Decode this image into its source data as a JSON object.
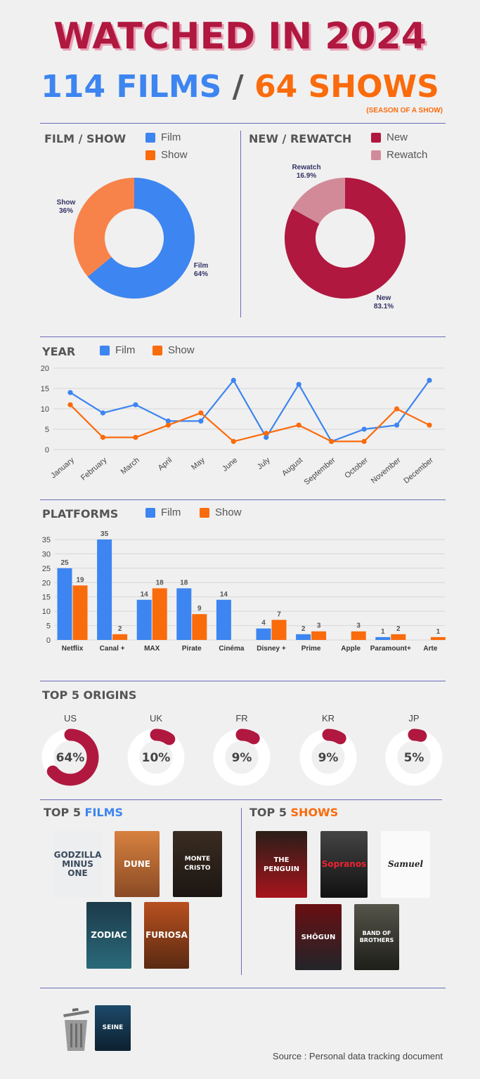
{
  "header": {
    "title": "WATCHED IN 2024",
    "films": "114 FILMS",
    "separator": "/",
    "shows": "64 SHOWS",
    "note": "(SEASON OF A SHOW)"
  },
  "colors": {
    "film": "#3d85f0",
    "show": "#fa6b0c",
    "show_light": "#f7834a",
    "new": "#b0183f",
    "rewatch": "#d28a99"
  },
  "donut_type": {
    "title": "FILM / SHOW",
    "legend": [
      "Film",
      "Show"
    ],
    "labels": {
      "film": "Film",
      "film_pct": "64%",
      "show": "Show",
      "show_pct": "36%"
    }
  },
  "donut_new": {
    "title": "NEW / REWATCH",
    "legend": [
      "New",
      "Rewatch"
    ],
    "labels": {
      "new": "New",
      "new_pct": "83.1%",
      "rewatch": "Rewatch",
      "rewatch_pct": "16.9%"
    }
  },
  "year": {
    "title": "YEAR",
    "legend": [
      "Film",
      "Show"
    ]
  },
  "platforms": {
    "title": "PLATFORMS",
    "legend": [
      "Film",
      "Show"
    ]
  },
  "origins": {
    "title": "TOP 5 ORIGINS",
    "items": [
      {
        "code": "US",
        "label": "64%",
        "value": 64
      },
      {
        "code": "UK",
        "label": "10%",
        "value": 10
      },
      {
        "code": "FR",
        "label": "9%",
        "value": 9
      },
      {
        "code": "KR",
        "label": "9%",
        "value": 9
      },
      {
        "code": "JP",
        "label": "5%",
        "value": 5
      }
    ]
  },
  "top_films": {
    "title_prefix": "TOP 5",
    "title_accent": "FILMS",
    "posters": [
      "GODZILLA MINUS ONE",
      "DUNE",
      "MONTE CRISTO",
      "ZODIAC",
      "FURIOSA"
    ]
  },
  "top_shows": {
    "title_prefix": "TOP 5",
    "title_accent": "SHOWS",
    "posters": [
      "THE PENGUIN",
      "Sopranos",
      "Samuel",
      "SHŌGUN",
      "BAND OF BROTHERS"
    ]
  },
  "bottom": {
    "trash_icon": "trash-icon",
    "poster": "SEINE"
  },
  "source": "Source : Personal data tracking document",
  "chart_data": [
    {
      "type": "pie",
      "title": "FILM / SHOW",
      "categories": [
        "Film",
        "Show"
      ],
      "values": [
        64,
        36
      ]
    },
    {
      "type": "pie",
      "title": "NEW / REWATCH",
      "categories": [
        "New",
        "Rewatch"
      ],
      "values": [
        83.1,
        16.9
      ]
    },
    {
      "type": "line",
      "title": "YEAR",
      "categories": [
        "January",
        "February",
        "March",
        "April",
        "May",
        "June",
        "July",
        "August",
        "September",
        "October",
        "November",
        "December"
      ],
      "series": [
        {
          "name": "Film",
          "values": [
            14,
            9,
            11,
            7,
            7,
            17,
            3,
            16,
            2,
            5,
            6,
            17
          ]
        },
        {
          "name": "Show",
          "values": [
            11,
            3,
            3,
            6,
            9,
            2,
            4,
            6,
            2,
            2,
            10,
            6
          ]
        }
      ],
      "ylim": [
        0,
        20
      ],
      "yticks": [
        0,
        5,
        10,
        15,
        20
      ],
      "grid": true,
      "legend": "top-left"
    },
    {
      "type": "bar",
      "title": "PLATFORMS",
      "categories": [
        "Netflix",
        "Canal +",
        "MAX",
        "Pirate",
        "Cinéma",
        "Disney +",
        "Prime",
        "Apple",
        "Paramount+",
        "Arte"
      ],
      "series": [
        {
          "name": "Film",
          "values": [
            25,
            35,
            14,
            18,
            14,
            4,
            2,
            0,
            1,
            0
          ]
        },
        {
          "name": "Show",
          "values": [
            19,
            2,
            18,
            9,
            0,
            7,
            3,
            3,
            2,
            1
          ]
        }
      ],
      "ylim": [
        0,
        35
      ],
      "yticks": [
        0,
        5,
        10,
        15,
        20,
        25,
        30,
        35
      ],
      "grid": true,
      "legend": "top-left"
    }
  ]
}
